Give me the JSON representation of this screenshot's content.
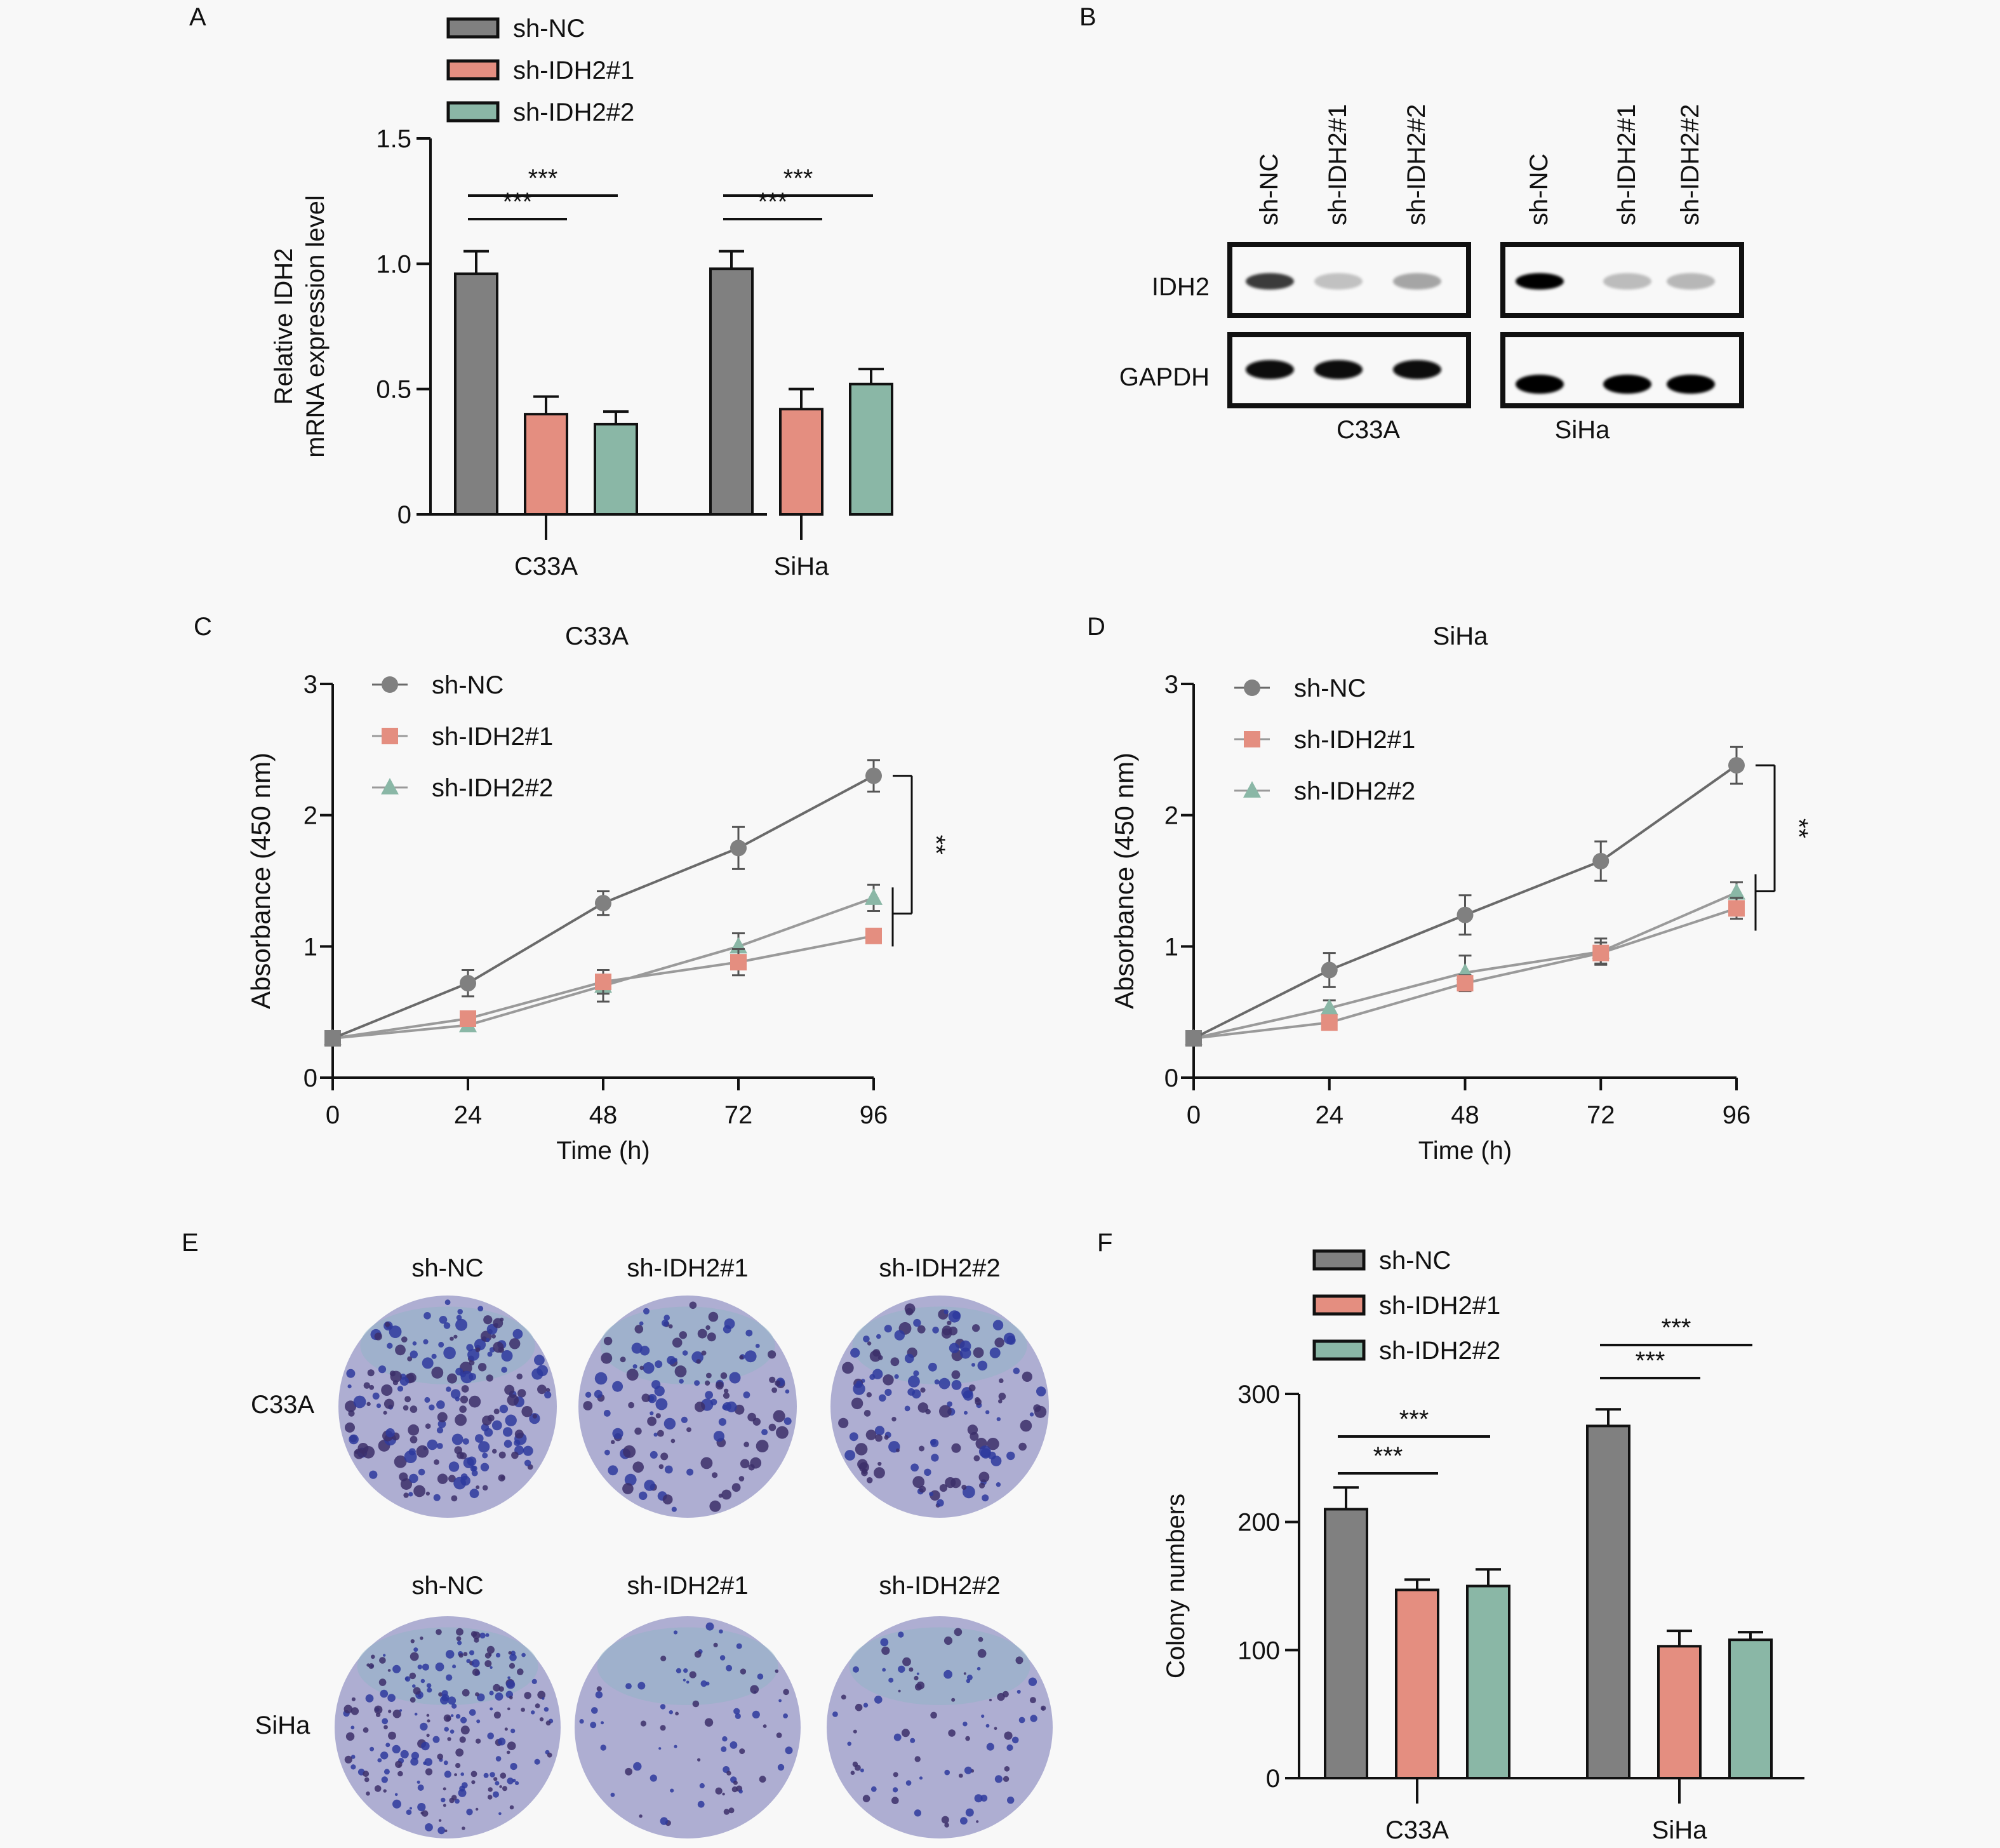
{
  "colors": {
    "sh_NC": "#808080",
    "sh_IDH2_1": "#E48E80",
    "sh_IDH2_2": "#8AB7A6",
    "background": "#f8f8f8",
    "axis": "#111111"
  },
  "chart_data": [
    {
      "panel": "A",
      "type": "bar",
      "title": "",
      "ylabel_lines": [
        "Relative IDH2",
        "mRNA expression level"
      ],
      "xlabel": "",
      "categories": [
        "C33A",
        "SiHa"
      ],
      "ylim": [
        0,
        1.5
      ],
      "yticks": [
        "0",
        "0.5",
        "1.0",
        "1.5"
      ],
      "ytick_values": [
        0,
        0.5,
        1.0,
        1.5
      ],
      "legend": [
        "sh-NC",
        "sh-IDH2#1",
        "sh-IDH2#2"
      ],
      "legend_position": "top",
      "series": [
        {
          "name": "sh-NC",
          "values": [
            0.96,
            0.98
          ],
          "errors": [
            0.09,
            0.07
          ]
        },
        {
          "name": "sh-IDH2#1",
          "values": [
            0.4,
            0.42
          ],
          "errors": [
            0.07,
            0.08
          ]
        },
        {
          "name": "sh-IDH2#2",
          "values": [
            0.36,
            0.52
          ],
          "errors": [
            0.05,
            0.06
          ]
        }
      ],
      "significance": [
        {
          "group": "C33A",
          "from": "sh-NC",
          "to": "sh-IDH2#1",
          "label": "***"
        },
        {
          "group": "C33A",
          "from": "sh-NC",
          "to": "sh-IDH2#2",
          "label": "***"
        },
        {
          "group": "SiHa",
          "from": "sh-NC",
          "to": "sh-IDH2#1",
          "label": "***"
        },
        {
          "group": "SiHa",
          "from": "sh-NC",
          "to": "sh-IDH2#2",
          "label": "***"
        }
      ],
      "grid": false
    },
    {
      "panel": "C",
      "type": "line",
      "title": "C33A",
      "xlabel": "Time (h)",
      "ylabel": "Absorbance (450 nm)",
      "x": [
        0,
        24,
        48,
        72,
        96
      ],
      "xticks": [
        "0",
        "24",
        "48",
        "72",
        "96"
      ],
      "ylim": [
        0,
        3
      ],
      "yticks": [
        "0",
        "1",
        "2",
        "3"
      ],
      "ytick_values": [
        0,
        1,
        2,
        3
      ],
      "legend_position": "top-left",
      "series": [
        {
          "name": "sh-NC",
          "marker": "circle",
          "values": [
            0.3,
            0.72,
            1.33,
            1.75,
            2.3
          ],
          "errors": [
            0.02,
            0.1,
            0.09,
            0.16,
            0.12
          ]
        },
        {
          "name": "sh-IDH2#1",
          "marker": "square",
          "values": [
            0.3,
            0.45,
            0.73,
            0.88,
            1.08
          ],
          "errors": [
            0.02,
            0.04,
            0.09,
            0.1,
            0.05
          ]
        },
        {
          "name": "sh-IDH2#2",
          "marker": "triangle",
          "values": [
            0.3,
            0.4,
            0.7,
            1.0,
            1.37
          ],
          "errors": [
            0.02,
            0.03,
            0.12,
            0.1,
            0.1
          ]
        }
      ],
      "significance": [
        {
          "label": "**"
        }
      ],
      "grid": false
    },
    {
      "panel": "D",
      "type": "line",
      "title": "SiHa",
      "xlabel": "Time (h)",
      "ylabel": "Absorbance (450 nm)",
      "x": [
        0,
        24,
        48,
        72,
        96
      ],
      "xticks": [
        "0",
        "24",
        "48",
        "72",
        "96"
      ],
      "ylim": [
        0,
        3
      ],
      "yticks": [
        "0",
        "1",
        "2",
        "3"
      ],
      "ytick_values": [
        0,
        1,
        2,
        3
      ],
      "legend_position": "top-left",
      "series": [
        {
          "name": "sh-NC",
          "marker": "circle",
          "values": [
            0.3,
            0.82,
            1.24,
            1.65,
            2.38
          ],
          "errors": [
            0.02,
            0.13,
            0.15,
            0.15,
            0.14
          ]
        },
        {
          "name": "sh-IDH2#1",
          "marker": "square",
          "values": [
            0.3,
            0.42,
            0.72,
            0.95,
            1.29
          ],
          "errors": [
            0.02,
            0.05,
            0.06,
            0.08,
            0.08
          ]
        },
        {
          "name": "sh-IDH2#2",
          "marker": "triangle",
          "values": [
            0.3,
            0.53,
            0.8,
            0.96,
            1.41
          ],
          "errors": [
            0.02,
            0.06,
            0.13,
            0.1,
            0.08
          ]
        }
      ],
      "significance": [
        {
          "label": "**"
        }
      ],
      "grid": false
    },
    {
      "panel": "F",
      "type": "bar",
      "title": "",
      "ylabel": "Colony numbers",
      "xlabel": "",
      "categories": [
        "C33A",
        "SiHa"
      ],
      "ylim": [
        0,
        300
      ],
      "yticks": [
        "0",
        "100",
        "200",
        "300"
      ],
      "ytick_values": [
        0,
        100,
        200,
        300
      ],
      "legend": [
        "sh-NC",
        "sh-IDH2#1",
        "sh-IDH2#2"
      ],
      "legend_position": "top",
      "series": [
        {
          "name": "sh-NC",
          "values": [
            210,
            275
          ],
          "errors": [
            17,
            13
          ]
        },
        {
          "name": "sh-IDH2#1",
          "values": [
            147,
            103
          ],
          "errors": [
            8,
            12
          ]
        },
        {
          "name": "sh-IDH2#2",
          "values": [
            150,
            108
          ],
          "errors": [
            13,
            6
          ]
        }
      ],
      "significance": [
        {
          "group": "C33A",
          "from": "sh-NC",
          "to": "sh-IDH2#1",
          "label": "***"
        },
        {
          "group": "C33A",
          "from": "sh-NC",
          "to": "sh-IDH2#2",
          "label": "***"
        },
        {
          "group": "SiHa",
          "from": "sh-NC",
          "to": "sh-IDH2#1",
          "label": "***"
        },
        {
          "group": "SiHa",
          "from": "sh-NC",
          "to": "sh-IDH2#2",
          "label": "***"
        }
      ],
      "grid": false
    }
  ],
  "panels": {
    "A": {
      "letter": "A"
    },
    "B": {
      "letter": "B",
      "lanes": [
        "sh-NC",
        "sh-IDH2#1",
        "sh-IDH2#2"
      ],
      "rows": [
        "IDH2",
        "GAPDH"
      ],
      "cell_lines": [
        "C33A",
        "SiHa"
      ],
      "band_intensity": {
        "C33A": {
          "IDH2": [
            0.75,
            0.18,
            0.3
          ],
          "GAPDH": [
            0.95,
            0.95,
            0.95
          ]
        },
        "SiHa": {
          "IDH2": [
            1.0,
            0.2,
            0.22
          ],
          "GAPDH": [
            1.0,
            1.0,
            1.0
          ]
        }
      }
    },
    "C": {
      "letter": "C"
    },
    "D": {
      "letter": "D"
    },
    "E": {
      "letter": "E",
      "columns": [
        "sh-NC",
        "sh-IDH2#1",
        "sh-IDH2#2"
      ],
      "rows": [
        "C33A",
        "SiHa"
      ],
      "colony_density": {
        "C33A": [
          0.9,
          0.6,
          0.65
        ],
        "SiHa": [
          1.0,
          0.35,
          0.38
        ]
      }
    },
    "F": {
      "letter": "F"
    }
  }
}
